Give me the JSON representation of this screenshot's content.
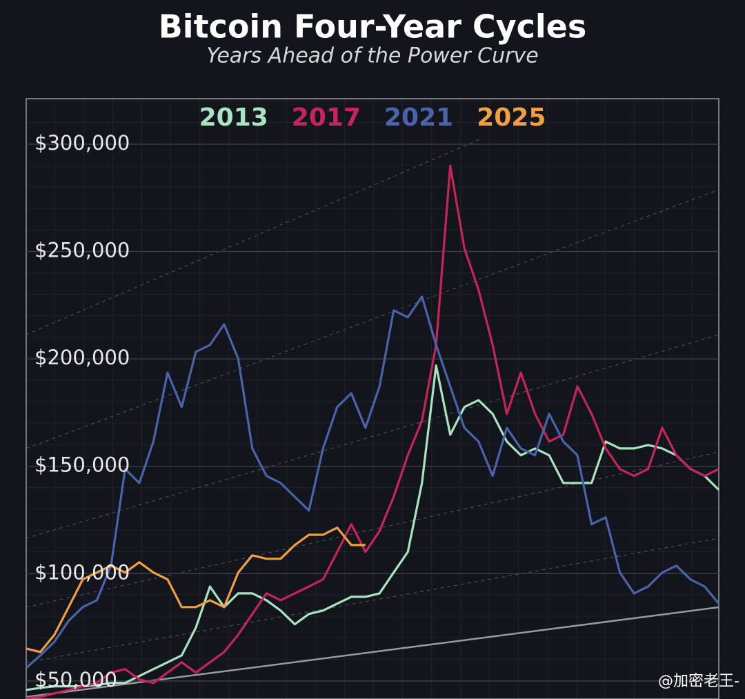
{
  "chart_data": {
    "type": "line",
    "title": "Bitcoin Four-Year Cycles",
    "subtitle": "Years Ahead of the Power Curve",
    "ylim": [
      41600,
      321200
    ],
    "yticks": [
      {
        "value": 50000,
        "label": "$50,000"
      },
      {
        "value": 100000,
        "label": "$100,000"
      },
      {
        "value": 150000,
        "label": "$150,000"
      },
      {
        "value": 200000,
        "label": "$200,000"
      },
      {
        "value": 250000,
        "label": "$250,000"
      },
      {
        "value": 300000,
        "label": "$300,000"
      }
    ],
    "grid": true,
    "series": [
      {
        "name": "2013",
        "color": "#a9e4c0",
        "values": [
          45800,
          46800,
          47500,
          47500,
          47500,
          48100,
          49100,
          49100,
          52300,
          55500,
          58700,
          61900,
          74800,
          94000,
          84400,
          90800,
          90800,
          87600,
          82800,
          76400,
          81200,
          82800,
          86000,
          89200,
          89200,
          90800,
          100500,
          110100,
          142200,
          196900,
          164700,
          177600,
          180800,
          174400,
          161500,
          155100,
          158300,
          155100,
          142200,
          142200,
          142200,
          161500,
          158300,
          158300,
          159900,
          158300,
          155100,
          148700,
          145500,
          139000
        ]
      },
      {
        "name": "2017",
        "color": "#c8245c",
        "values": [
          42000,
          42600,
          44200,
          45800,
          47500,
          49100,
          53900,
          55500,
          50700,
          49100,
          53900,
          58700,
          53900,
          58700,
          63500,
          71600,
          81200,
          90800,
          87600,
          90800,
          94000,
          97300,
          110100,
          123000,
          110100,
          119800,
          135800,
          155100,
          171200,
          206500,
          290000,
          251500,
          232200,
          206500,
          174400,
          193600,
          174400,
          161500,
          164700,
          187200,
          174400,
          158300,
          148700,
          145500,
          148700,
          167900,
          155100,
          148700,
          145500,
          148700
        ]
      },
      {
        "name": "2021",
        "color": "#4a63aa",
        "values": [
          56100,
          61900,
          68300,
          78000,
          84400,
          87600,
          103700,
          148700,
          142200,
          161500,
          193600,
          177600,
          203300,
          206500,
          216100,
          200100,
          158300,
          145500,
          142200,
          135800,
          129400,
          158300,
          177600,
          184000,
          167900,
          187200,
          222600,
          219400,
          229000,
          206500,
          187200,
          167900,
          161500,
          145500,
          167900,
          158300,
          155100,
          174400,
          161500,
          155100,
          123000,
          126200,
          100500,
          90800,
          94000,
          100500,
          103700,
          97300,
          94000,
          86000
        ]
      },
      {
        "name": "2025",
        "color": "#f0a040",
        "values": [
          65100,
          63500,
          71600,
          84400,
          97300,
          100500,
          103700,
          100500,
          105300,
          100500,
          97300,
          84400,
          84400,
          87600,
          84400,
          100500,
          108500,
          106900,
          106900,
          113300,
          118100,
          118100,
          121400,
          113300,
          113300,
          null,
          null,
          null,
          null,
          null,
          null,
          null,
          null,
          null,
          null,
          null,
          null,
          null,
          null,
          null,
          null,
          null,
          null,
          null,
          null,
          null,
          null,
          null,
          null,
          null
        ]
      }
    ],
    "watermark": "@加密老王-"
  }
}
